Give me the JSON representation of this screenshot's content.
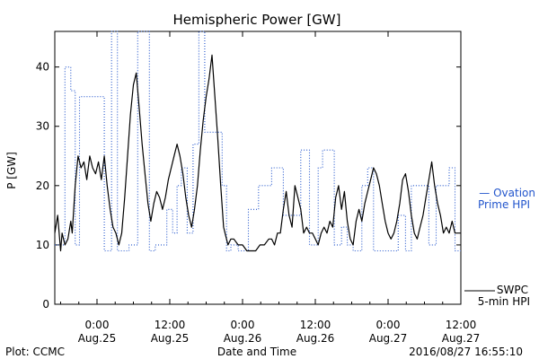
{
  "chart_data": {
    "type": "line",
    "title": "Hemispheric Power [GW]",
    "ylabel": "P [GW]",
    "xlabel": "Date and Time",
    "ylim": [
      0,
      46
    ],
    "xlim": [
      -0.29,
      2.5
    ],
    "grid": false,
    "y_ticks": [
      0,
      10,
      20,
      30,
      40
    ],
    "x_ticks": [
      {
        "x": 0.0,
        "line1": "0:00",
        "line2": "Aug.25"
      },
      {
        "x": 0.5,
        "line1": "12:00",
        "line2": "Aug.25"
      },
      {
        "x": 1.0,
        "line1": "0:00",
        "line2": "Aug.26"
      },
      {
        "x": 1.5,
        "line1": "12:00",
        "line2": "Aug.26"
      },
      {
        "x": 2.0,
        "line1": "0:00",
        "line2": "Aug.27"
      },
      {
        "x": 2.5,
        "line1": "12:00",
        "line2": "Aug.27"
      }
    ],
    "x_units": "days since 2016-08-25 00:00 UT",
    "series": [
      {
        "name": "Ovation Prime HPI",
        "style": "dotted",
        "color": "#2255cc",
        "x": [
          -0.29,
          -0.22,
          -0.22,
          -0.18,
          -0.18,
          -0.15,
          -0.15,
          -0.12,
          -0.12,
          -0.1,
          -0.1,
          0.05,
          0.05,
          0.1,
          0.1,
          0.14,
          0.14,
          0.22,
          0.22,
          0.28,
          0.28,
          0.36,
          0.36,
          0.4,
          0.4,
          0.48,
          0.48,
          0.52,
          0.52,
          0.55,
          0.55,
          0.58,
          0.58,
          0.62,
          0.62,
          0.66,
          0.66,
          0.7,
          0.7,
          0.74,
          0.74,
          0.86,
          0.86,
          0.89,
          0.89,
          0.92,
          0.92,
          0.97,
          0.97,
          1.04,
          1.04,
          1.11,
          1.11,
          1.2,
          1.2,
          1.28,
          1.28,
          1.4,
          1.4,
          1.46,
          1.46,
          1.52,
          1.52,
          1.55,
          1.55,
          1.63,
          1.63,
          1.68,
          1.68,
          1.72,
          1.72,
          1.76,
          1.76,
          1.82,
          1.82,
          1.86,
          1.86,
          1.9,
          1.9,
          2.07,
          2.07,
          2.12,
          2.12,
          2.16,
          2.16,
          2.28,
          2.28,
          2.33,
          2.33,
          2.38,
          2.38,
          2.42,
          2.42,
          2.46,
          2.46,
          2.5
        ],
        "y": [
          10,
          10,
          40,
          40,
          36,
          36,
          10,
          10,
          35,
          35,
          35,
          35,
          9,
          9,
          46,
          46,
          9,
          9,
          10,
          10,
          46,
          46,
          9,
          9,
          10,
          10,
          16,
          16,
          12,
          12,
          20,
          20,
          23,
          23,
          12,
          12,
          27,
          27,
          46,
          46,
          29,
          29,
          20,
          20,
          9,
          9,
          10,
          10,
          9,
          9,
          16,
          16,
          20,
          20,
          23,
          23,
          15,
          15,
          26,
          26,
          10,
          10,
          23,
          23,
          26,
          26,
          10,
          10,
          13,
          13,
          10,
          10,
          9,
          9,
          20,
          20,
          23,
          23,
          9,
          9,
          15,
          15,
          9,
          9,
          20,
          20,
          10,
          10,
          20,
          20,
          20,
          20,
          23,
          23,
          9,
          9
        ]
      },
      {
        "name": "SWPC 5-min HPI",
        "style": "solid",
        "color": "#000000",
        "x": [
          -0.29,
          -0.27,
          -0.25,
          -0.24,
          -0.22,
          -0.2,
          -0.18,
          -0.17,
          -0.15,
          -0.13,
          -0.11,
          -0.09,
          -0.07,
          -0.05,
          -0.03,
          -0.01,
          0.01,
          0.03,
          0.05,
          0.07,
          0.09,
          0.11,
          0.13,
          0.15,
          0.17,
          0.19,
          0.21,
          0.23,
          0.25,
          0.27,
          0.29,
          0.31,
          0.33,
          0.35,
          0.37,
          0.39,
          0.41,
          0.43,
          0.45,
          0.47,
          0.49,
          0.51,
          0.53,
          0.55,
          0.57,
          0.59,
          0.61,
          0.63,
          0.65,
          0.67,
          0.69,
          0.71,
          0.73,
          0.75,
          0.77,
          0.79,
          0.81,
          0.83,
          0.85,
          0.87,
          0.88,
          0.9,
          0.92,
          0.94,
          0.97,
          1.0,
          1.03,
          1.06,
          1.09,
          1.12,
          1.15,
          1.18,
          1.2,
          1.22,
          1.24,
          1.26,
          1.28,
          1.3,
          1.32,
          1.34,
          1.36,
          1.38,
          1.4,
          1.42,
          1.44,
          1.46,
          1.48,
          1.5,
          1.52,
          1.54,
          1.56,
          1.58,
          1.6,
          1.62,
          1.64,
          1.66,
          1.68,
          1.7,
          1.72,
          1.74,
          1.76,
          1.78,
          1.8,
          1.82,
          1.84,
          1.86,
          1.88,
          1.9,
          1.92,
          1.94,
          1.96,
          1.98,
          2.0,
          2.02,
          2.04,
          2.06,
          2.08,
          2.1,
          2.12,
          2.14,
          2.16,
          2.18,
          2.2,
          2.22,
          2.24,
          2.26,
          2.28,
          2.3,
          2.32,
          2.34,
          2.36,
          2.38,
          2.4,
          2.42,
          2.44,
          2.46,
          2.48,
          2.5
        ],
        "y": [
          12,
          15,
          9,
          12,
          10,
          11,
          14,
          12,
          20,
          25,
          23,
          24,
          21,
          25,
          23,
          22,
          24,
          21,
          25,
          20,
          16,
          13,
          12,
          10,
          12,
          18,
          25,
          32,
          37,
          39,
          33,
          27,
          22,
          17,
          14,
          17,
          19,
          18,
          16,
          18,
          21,
          23,
          25,
          27,
          25,
          22,
          18,
          15,
          13,
          16,
          20,
          26,
          31,
          35,
          38,
          42,
          35,
          28,
          20,
          13,
          12,
          10,
          11,
          11,
          10,
          10,
          9,
          9,
          9,
          10,
          10,
          11,
          11,
          10,
          12,
          12,
          16,
          19,
          15,
          13,
          20,
          18,
          16,
          12,
          13,
          12,
          12,
          11,
          10,
          12,
          13,
          12,
          14,
          13,
          18,
          20,
          16,
          19,
          14,
          11,
          10,
          14,
          16,
          14,
          17,
          19,
          21,
          23,
          22,
          20,
          17,
          14,
          12,
          11,
          12,
          14,
          17,
          21,
          22,
          19,
          15,
          12,
          11,
          13,
          15,
          18,
          21,
          24,
          20,
          17,
          15,
          12,
          13,
          12,
          14,
          12,
          12,
          12
        ]
      }
    ],
    "legend": [
      {
        "series": "Ovation Prime HPI",
        "lines": [
          "— Ovation",
          "Prime HPI"
        ],
        "placement": "right-middle"
      },
      {
        "series": "SWPC 5-min HPI",
        "lines": [
          "SWPC",
          "5-min HPI"
        ],
        "placement": "right-bottom"
      }
    ]
  },
  "footer": {
    "left": "Plot: CCMC",
    "center": "Date and Time",
    "right": "2016/08/27 16:55:10"
  },
  "colors": {
    "ovation": "#2255cc",
    "swpc": "#000000"
  }
}
